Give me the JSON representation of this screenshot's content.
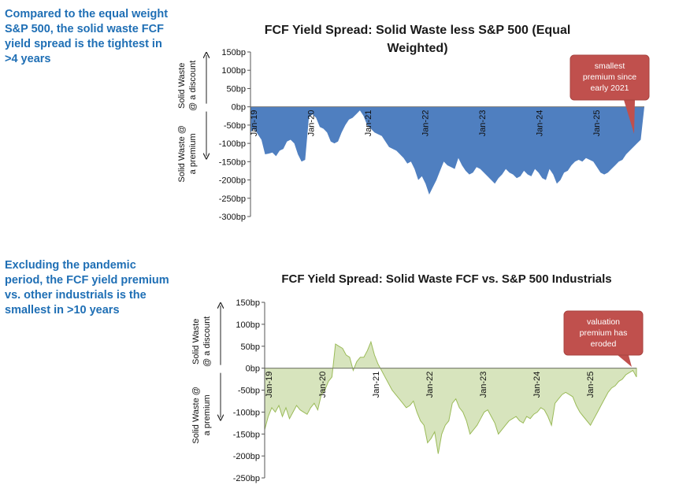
{
  "notes": {
    "top": "Compared to the equal weight S&P 500, the solid waste FCF yield spread is the tightest in >4 years",
    "bottom": "Excluding the pandemic period, the FCF yield premium vs. other industrials is the smallest in >10 years"
  },
  "colors": {
    "note_text": "#1f6fb5",
    "chart1_fill": "#4f7fc0",
    "chart2_fill": "#d7e4bd",
    "chart2_stroke": "#9bbb59",
    "callout_fill": "#c0504d"
  },
  "chart_data": [
    {
      "type": "area",
      "title": "FCF Yield Spread: Solid Waste less S&P 500 (Equal Weighted)",
      "title_lines": [
        "FCF Yield Spread: Solid Waste less S&P 500 (Equal",
        "Weighted)"
      ],
      "y_ticks": [
        "150bp",
        "100bp",
        "50bp",
        "0bp",
        "-50bp",
        "-100bp",
        "-150bp",
        "-200bp",
        "-250bp",
        "-300bp"
      ],
      "ylim": [
        -300,
        150
      ],
      "x_ticks": [
        "Jan-19",
        "Jan-20",
        "Jan-21",
        "Jan-22",
        "Jan-23",
        "Jan-24",
        "Jan-25"
      ],
      "y_label_upper": [
        "Solid Waste",
        "@ a discount"
      ],
      "y_label_lower": [
        "Solid Waste @",
        "a premium"
      ],
      "annotation": {
        "lines": [
          "smallest",
          "premium since",
          "early 2021"
        ]
      },
      "series": [
        {
          "values": [
            -70,
            -60,
            -75,
            -90,
            -130,
            -128,
            -125,
            -135,
            -120,
            -115,
            -95,
            -90,
            -100,
            -130,
            -150,
            -145,
            -30,
            -20,
            -30,
            -55,
            -60,
            -70,
            -95,
            -100,
            -95,
            -70,
            -50,
            -35,
            -30,
            -20,
            -10,
            -25,
            -50,
            -60,
            -70,
            -75,
            -80,
            -95,
            -110,
            -115,
            -120,
            -130,
            -140,
            -155,
            -150,
            -170,
            -200,
            -190,
            -210,
            -240,
            -220,
            -200,
            -175,
            -150,
            -160,
            -165,
            -170,
            -140,
            -160,
            -175,
            -185,
            -180,
            -165,
            -170,
            -180,
            -190,
            -200,
            -210,
            -195,
            -185,
            -170,
            -180,
            -185,
            -195,
            -190,
            -175,
            -185,
            -190,
            -170,
            -180,
            -195,
            -200,
            -170,
            -185,
            -210,
            -200,
            -180,
            -175,
            -160,
            -150,
            -145,
            -150,
            -140,
            -145,
            -150,
            -165,
            -180,
            -185,
            -180,
            -170,
            -160,
            -150,
            -145,
            -130,
            -120,
            -110,
            -100,
            -90,
            0
          ]
        }
      ]
    },
    {
      "type": "area",
      "title": "FCF Yield Spread: Solid Waste FCF vs. S&P 500 Industrials",
      "title_lines": [
        "FCF Yield Spread: Solid Waste FCF vs. S&P 500 Industrials"
      ],
      "y_ticks": [
        "150bp",
        "100bp",
        "50bp",
        "0bp",
        "-50bp",
        "-100bp",
        "-150bp",
        "-200bp",
        "-250bp"
      ],
      "ylim": [
        -250,
        150
      ],
      "x_ticks": [
        "Jan-19",
        "Jan-20",
        "Jan-21",
        "Jan-22",
        "Jan-23",
        "Jan-24",
        "Jan-25"
      ],
      "y_label_upper": [
        "Solid Waste",
        "@ a discount"
      ],
      "y_label_lower": [
        "Solid Waste @",
        "a premium"
      ],
      "annotation": {
        "lines": [
          "valuation",
          "premium has",
          "eroded"
        ]
      },
      "series": [
        {
          "values": [
            -140,
            -110,
            -90,
            -100,
            -85,
            -110,
            -90,
            -115,
            -100,
            -85,
            -95,
            -100,
            -105,
            -90,
            -80,
            -95,
            -60,
            -50,
            -30,
            -20,
            55,
            50,
            45,
            30,
            25,
            -5,
            15,
            25,
            25,
            40,
            60,
            30,
            10,
            -5,
            -20,
            -35,
            -50,
            -60,
            -70,
            -80,
            -90,
            -85,
            -75,
            -100,
            -120,
            -130,
            -170,
            -160,
            -145,
            -195,
            -150,
            -130,
            -120,
            -80,
            -70,
            -90,
            -100,
            -120,
            -150,
            -140,
            -130,
            -115,
            -100,
            -95,
            -110,
            -125,
            -150,
            -140,
            -130,
            -120,
            -115,
            -110,
            -120,
            -125,
            -110,
            -115,
            -105,
            -100,
            -90,
            -95,
            -110,
            -130,
            -80,
            -70,
            -60,
            -55,
            -60,
            -65,
            -85,
            -100,
            -110,
            -120,
            -130,
            -115,
            -100,
            -85,
            -70,
            -55,
            -45,
            -40,
            -30,
            -25,
            -15,
            -10,
            -5,
            -20
          ]
        }
      ]
    }
  ]
}
